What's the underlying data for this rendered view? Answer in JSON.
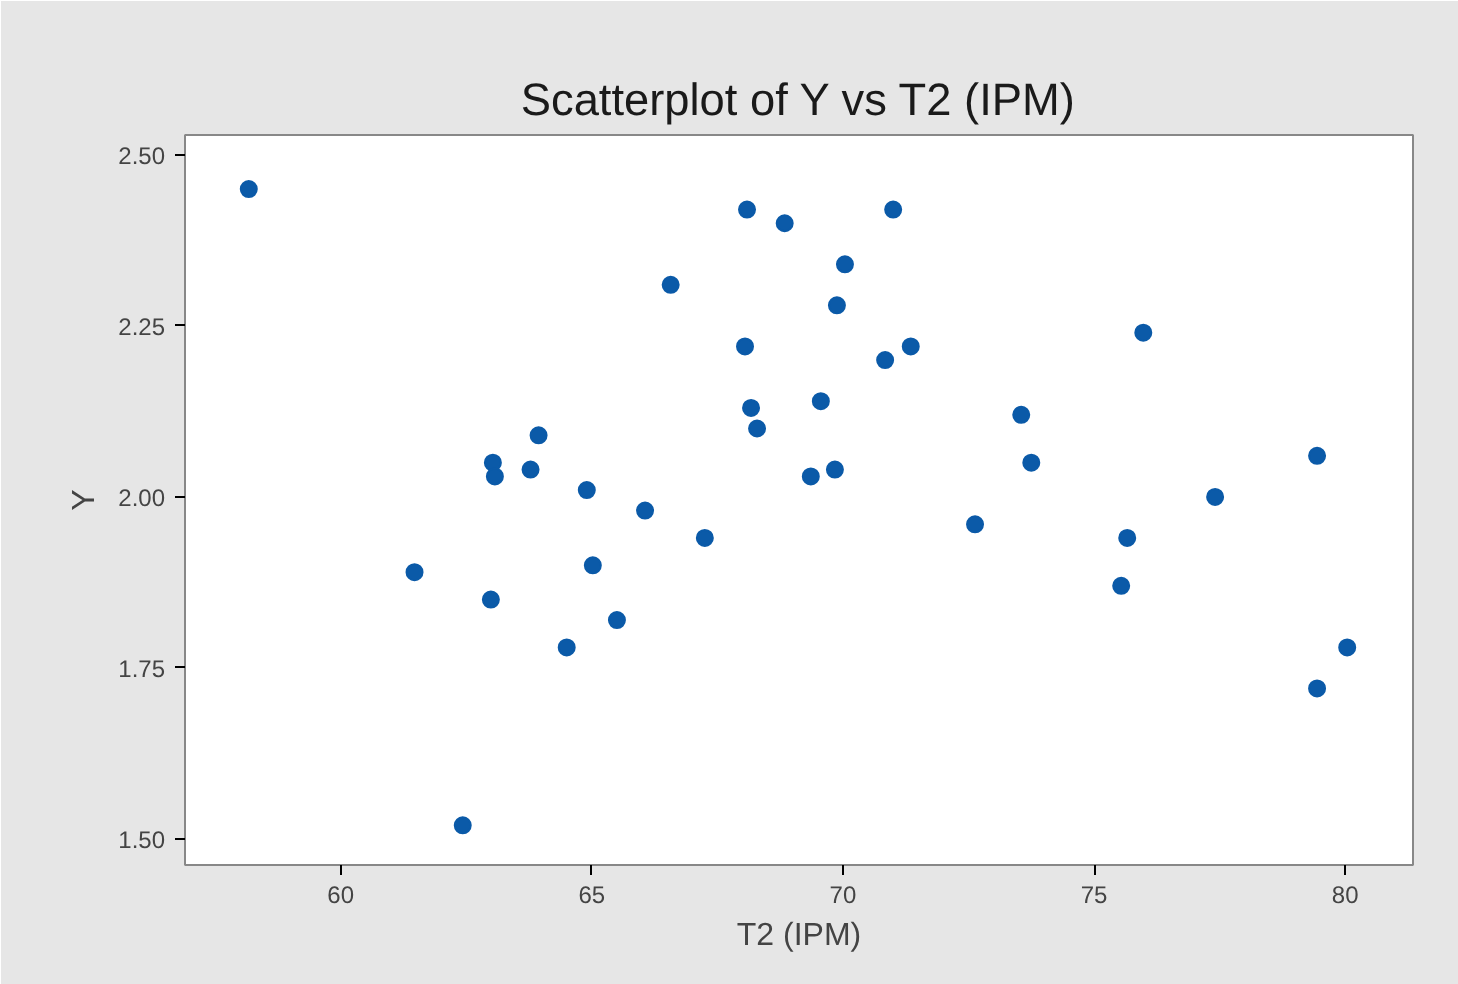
{
  "chart_data": {
    "type": "scatter",
    "title": "Scatterplot of Y vs T2 (IPM)",
    "xlabel": "T2 (IPM)",
    "ylabel": "Y",
    "x": [
      58.17,
      61.47,
      62.43,
      63.03,
      63.07,
      62.99,
      63.78,
      63.94,
      64.5,
      64.9,
      65.02,
      65.5,
      66.06,
      66.57,
      67.25,
      68.09,
      68.05,
      68.17,
      68.29,
      68.84,
      69.36,
      69.56,
      69.88,
      69.84,
      70.04,
      71.0,
      70.84,
      71.35,
      72.63,
      73.55,
      73.75,
      75.54,
      75.66,
      75.98,
      77.41,
      79.44,
      79.44,
      80.04
    ],
    "series": [
      {
        "color": "#0b5aa8",
        "values": [
          2.45,
          1.89,
          1.52,
          2.05,
          2.03,
          1.85,
          2.04,
          2.09,
          1.78,
          2.01,
          1.9,
          1.82,
          1.98,
          2.31,
          1.94,
          2.42,
          2.22,
          2.13,
          2.1,
          2.4,
          2.03,
          2.14,
          2.28,
          2.04,
          2.34,
          2.42,
          2.2,
          2.22,
          1.96,
          2.12,
          2.05,
          1.87,
          1.94,
          2.24,
          2.0,
          2.06,
          1.72,
          1.78
        ]
      }
    ],
    "xlim": [
      56.9,
      81.35
    ],
    "ylim": [
      1.462,
      2.529
    ],
    "xticks": [
      60,
      65,
      70,
      75,
      80
    ],
    "yticks": [
      {
        "value": 1.5,
        "label": "1.50"
      },
      {
        "value": 1.75,
        "label": "1.75"
      },
      {
        "value": 2.0,
        "label": "2.00"
      },
      {
        "value": 2.25,
        "label": "2.25"
      },
      {
        "value": 2.5,
        "label": "2.50"
      }
    ],
    "marker": "circle",
    "grid": false
  }
}
